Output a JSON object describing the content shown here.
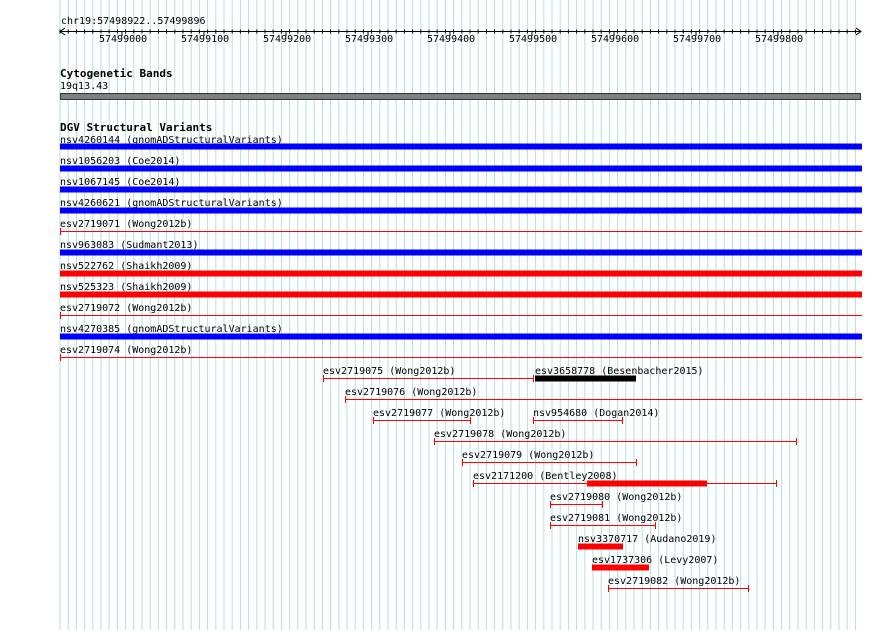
{
  "ruler": {
    "region": "chr19:57498922..57499896",
    "ticks": [
      "57499000",
      "57499100",
      "57499200",
      "57499300",
      "57499400",
      "57499500",
      "57499600",
      "57499700",
      "57499800"
    ]
  },
  "cyto": {
    "title": "Cytogenetic Bands",
    "band": "19q13.43"
  },
  "dgv": {
    "title": "DGV Structural Variants",
    "colors": {
      "blue": "#0000ff",
      "red": "#ff0000",
      "black": "#000000"
    },
    "features": [
      {
        "label": "nsv4260144 (gnomADStructuralVariants)",
        "color": "blue",
        "style": "thick"
      },
      {
        "label": "nsv1056203 (Coe2014)",
        "color": "blue",
        "style": "thick"
      },
      {
        "label": "nsv1067145 (Coe2014)",
        "color": "blue",
        "style": "thick"
      },
      {
        "label": "nsv4260621 (gnomADStructuralVariants)",
        "color": "blue",
        "style": "thick"
      },
      {
        "label": "esv2719071 (Wong2012b)",
        "color": "red",
        "style": "thin"
      },
      {
        "label": "nsv963083 (Sudmant2013)",
        "color": "blue",
        "style": "thick"
      },
      {
        "label": "nsv522762 (Shaikh2009)",
        "color": "red",
        "style": "thick"
      },
      {
        "label": "nsv525323 (Shaikh2009)",
        "color": "red",
        "style": "thick"
      },
      {
        "label": "esv2719072 (Wong2012b)",
        "color": "red",
        "style": "thin"
      },
      {
        "label": "nsv4270385 (gnomADStructuralVariants)",
        "color": "blue",
        "style": "thick"
      },
      {
        "label": "esv2719074 (Wong2012b)",
        "color": "red",
        "style": "thin"
      },
      {
        "label": "esv2719075 (Wong2012b)",
        "color": "red",
        "style": "thin"
      },
      {
        "label": "esv3658778 (Besenbacher2015)",
        "color": "black",
        "style": "thick"
      },
      {
        "label": "esv2719076 (Wong2012b)",
        "color": "red",
        "style": "thin"
      },
      {
        "label": "esv2719077 (Wong2012b)",
        "color": "red",
        "style": "thin"
      },
      {
        "label": "nsv954680 (Dogan2014)",
        "color": "red",
        "style": "thin"
      },
      {
        "label": "esv2719078 (Wong2012b)",
        "color": "red",
        "style": "thin"
      },
      {
        "label": "esv2719079 (Wong2012b)",
        "color": "red",
        "style": "thin"
      },
      {
        "label": "esv2171200 (Bentley2008)",
        "color": "red",
        "style": "mixed"
      },
      {
        "label": "esv2719080 (Wong2012b)",
        "color": "red",
        "style": "thin"
      },
      {
        "label": "esv2719081 (Wong2012b)",
        "color": "red",
        "style": "thin"
      },
      {
        "label": "nsv3370717 (Audano2019)",
        "color": "red",
        "style": "thick"
      },
      {
        "label": "esv1737306 (Levy2007)",
        "color": "red",
        "style": "thick"
      },
      {
        "label": "esv2719082 (Wong2012b)",
        "color": "red",
        "style": "thin"
      }
    ]
  }
}
